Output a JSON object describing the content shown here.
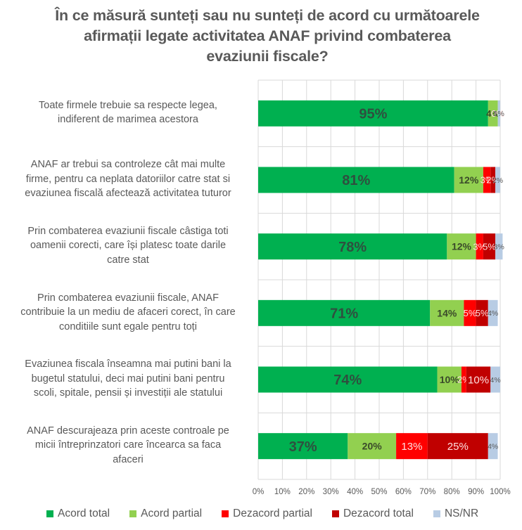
{
  "chart_data": {
    "type": "bar",
    "orientation": "horizontal",
    "stacked": "percent",
    "title_lines": [
      "În ce măsură sunteți sau nu sunteți de acord cu următoarele",
      "afirmații legate activitatea ANAF privind combaterea",
      "evaziunii fiscale?"
    ],
    "xlabel": "",
    "ylabel": "",
    "xlim": [
      0,
      100
    ],
    "x_ticks": [
      "0%",
      "10%",
      "20%",
      "30%",
      "40%",
      "50%",
      "60%",
      "70%",
      "80%",
      "90%",
      "100%"
    ],
    "grid": true,
    "legend_position": "bottom",
    "categories": [
      [
        "Toate firmele trebuie sa respecte legea,",
        "indiferent de marimea acestora"
      ],
      [
        "ANAF ar trebui sa controleze cât mai multe",
        "firme, pentru ca neplata datoriilor catre stat si",
        "evaziunea fiscală afectează activitatea tuturor"
      ],
      [
        "Prin combaterea evaziunii fiscale câstiga toti",
        "oamenii corecti, care își platesc toate darile",
        "catre stat"
      ],
      [
        "Prin combaterea evaziunii fiscale, ANAF",
        "contribuie la un mediu de afaceri corect, în care",
        "conditiile sunt egale pentru toți"
      ],
      [
        "Evaziunea fiscala înseamna mai putini bani la",
        "bugetul statului, deci mai putini bani pentru",
        "scoli, spitale, pensii și investiții ale statului"
      ],
      [
        "ANAF descurajeaza prin aceste controale pe",
        "micii întreprinzatori care încearca sa faca",
        "afaceri"
      ]
    ],
    "series": [
      {
        "name": "Acord total",
        "color": "#00B050",
        "label_color": "#2F4F3F",
        "values": [
          95,
          81,
          78,
          71,
          74,
          37
        ]
      },
      {
        "name": "Acord partial",
        "color": "#92D050",
        "label_color": "#3A4A2A",
        "values": [
          4,
          12,
          12,
          14,
          10,
          20
        ]
      },
      {
        "name": "Dezacord partial",
        "color": "#FF0000",
        "label_color": "#FFE0E0",
        "values": [
          0,
          3,
          3,
          5,
          2,
          13
        ]
      },
      {
        "name": "Dezacord total",
        "color": "#C00000",
        "label_color": "#FFE0E0",
        "values": [
          0,
          2,
          5,
          5,
          10,
          25
        ]
      },
      {
        "name": "NS/NR",
        "color": "#B8CCE4",
        "label_color": "#595959",
        "values": [
          1,
          2,
          3,
          4,
          4,
          4
        ]
      }
    ]
  }
}
